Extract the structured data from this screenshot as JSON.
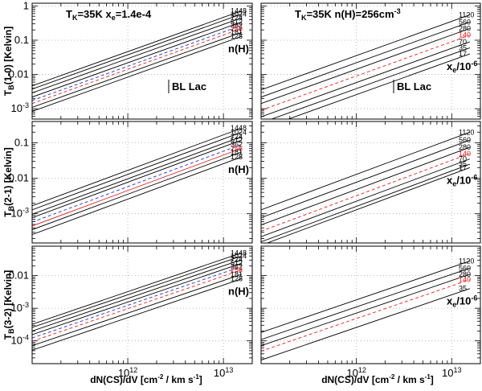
{
  "chart_data": {
    "type": "line",
    "x_label": "dN(CS)/dV [cm<sup>-2</sup> / km s<sup>-1</sup>]",
    "x_label_text": "dN(CS)/dV [cm-2 / km s-1]",
    "x_range": [
      100000000000.0,
      20000000000000.0
    ],
    "x_scale": "log",
    "x_ticks": [
      {
        "value": 1000000000000.0,
        "label": "10",
        "exp": "12"
      },
      {
        "value": 10000000000000.0,
        "label": "10",
        "exp": "13"
      }
    ],
    "grid": true,
    "columns": [
      {
        "title": "TK=35K xe=1.4e-4",
        "key_label": "n(H)"
      },
      {
        "title": "TK=35K n(H)=256cm-3",
        "key_label": "xe/10-6"
      }
    ],
    "rows": [
      {
        "ylabel": "TB(1-0) [Kelvin]",
        "ylim": [
          0.0005,
          1.2
        ],
        "y_ticks": [
          {
            "v": 1,
            "t": "1"
          },
          {
            "v": 0.1,
            "t": "0.1"
          },
          {
            "v": 0.01,
            "t": "0.01"
          },
          {
            "v": 0.001,
            "t": "10",
            "e": "-3"
          }
        ],
        "annotation": "BL Lac",
        "panels": [
          {
            "line_labels": [
              "1448",
              "1024",
              "724",
              "512",
              "362",
              "256",
              "181",
              "128"
            ],
            "y_at_end": [
              0.72,
              0.58,
              0.45,
              0.34,
              0.27,
              0.22,
              0.17,
              0.13
            ],
            "styles": [
              "solid",
              "solid",
              "solid",
              "solid",
              "dash-blue",
              "dash-red",
              "solid",
              "solid"
            ]
          },
          {
            "line_labels": [
              "1120",
              "560",
              "280",
              "140",
              "70",
              "35",
              "17"
            ],
            "y_at_end": [
              0.55,
              0.34,
              0.22,
              0.14,
              0.09,
              0.06,
              0.04
            ],
            "styles": [
              "solid",
              "solid",
              "solid",
              "dash-red",
              "solid",
              "solid",
              "solid"
            ]
          }
        ]
      },
      {
        "ylabel": "TB(2-1) [Kelvin]",
        "ylim": [
          0.00015,
          0.4
        ],
        "y_ticks": [
          {
            "v": 0.1,
            "t": "0.1"
          },
          {
            "v": 0.01,
            "t": "0.01"
          },
          {
            "v": 0.001,
            "t": "10",
            "e": "-3"
          }
        ],
        "annotation": "",
        "panels": [
          {
            "line_labels": [
              "1448",
              "1024",
              "724",
              "512",
              "362",
              "256",
              "181",
              "128"
            ],
            "y_at_end": [
              0.26,
              0.2,
              0.15,
              0.12,
              0.09,
              0.07,
              0.055,
              0.04
            ],
            "styles": [
              "solid",
              "solid",
              "solid",
              "solid",
              "dash-blue",
              "solid-red",
              "solid",
              "solid"
            ]
          },
          {
            "line_labels": [
              "1120",
              "560",
              "280",
              "140",
              "70",
              "35",
              "17"
            ],
            "y_at_end": [
              0.2,
              0.12,
              0.075,
              0.05,
              0.035,
              0.025,
              0.02
            ],
            "styles": [
              "solid",
              "solid",
              "solid",
              "dash-red",
              "solid",
              "solid",
              "solid"
            ]
          }
        ]
      },
      {
        "ylabel": "TB(3-2) [Kelvin]",
        "ylim": [
          2e-05,
          0.08
        ],
        "y_ticks": [
          {
            "v": 0.01,
            "t": "0.01"
          },
          {
            "v": 0.001,
            "t": "10",
            "e": "-3"
          },
          {
            "v": 0.0001,
            "t": "10",
            "e": "-4"
          }
        ],
        "annotation": "",
        "panels": [
          {
            "line_labels": [
              "1448",
              "1024",
              "724",
              "512",
              "362",
              "256",
              "181",
              "128"
            ],
            "y_at_end": [
              0.05,
              0.04,
              0.031,
              0.024,
              0.019,
              0.015,
              0.011,
              0.008
            ],
            "styles": [
              "solid",
              "solid",
              "solid",
              "solid",
              "dash-blue",
              "dash-red",
              "solid",
              "solid"
            ]
          },
          {
            "line_labels": [
              "1120",
              "560",
              "280",
              "140",
              "35"
            ],
            "y_at_end": [
              0.028,
              0.017,
              0.011,
              0.0075,
              0.004
            ],
            "styles": [
              "solid",
              "solid",
              "solid",
              "dash-red",
              "solid"
            ]
          }
        ]
      }
    ],
    "slope_decades": 1.0
  }
}
